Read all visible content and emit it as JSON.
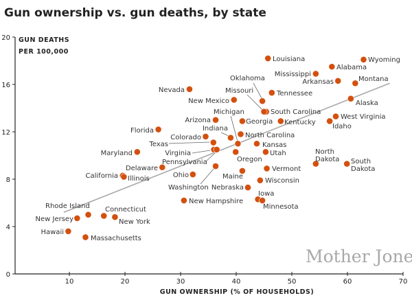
{
  "chart_data": {
    "type": "scatter",
    "title": "Gun ownership vs. gun deaths, by state",
    "xlabel": "GUN OWNERSHIP (% OF HOUSEHOLDS)",
    "ylabel_line1": "GUN DEATHS",
    "ylabel_line2": "PER 100,000",
    "xlim": [
      0,
      70
    ],
    "ylim": [
      0,
      20
    ],
    "xticks": [
      "10",
      "20",
      "30",
      "40",
      "50",
      "60",
      "70"
    ],
    "yticks": [
      "0",
      "4",
      "8",
      "12",
      "16",
      "20"
    ],
    "grid": false,
    "point_color": "#d4500f",
    "trendline_color": "#a9a9a9",
    "trendline": {
      "x": [
        9.0,
        67.6
      ],
      "y": [
        5.2,
        16.1
      ]
    },
    "watermark": "Mother Jones",
    "points": [
      {
        "name": "Wyoming",
        "x": 62.9,
        "y": 18.1
      },
      {
        "name": "Louisiana",
        "x": 45.7,
        "y": 18.2
      },
      {
        "name": "Alabama",
        "x": 57.2,
        "y": 17.5
      },
      {
        "name": "Mississippi",
        "x": 54.3,
        "y": 16.9
      },
      {
        "name": "Arkansas",
        "x": 58.3,
        "y": 16.3
      },
      {
        "name": "Montana",
        "x": 61.4,
        "y": 16.1
      },
      {
        "name": "Nevada",
        "x": 31.6,
        "y": 15.6
      },
      {
        "name": "Tennessee",
        "x": 46.4,
        "y": 15.3
      },
      {
        "name": "New Mexico",
        "x": 39.6,
        "y": 14.7
      },
      {
        "name": "Oklahoma",
        "x": 44.7,
        "y": 14.6
      },
      {
        "name": "Alaska",
        "x": 60.6,
        "y": 14.8
      },
      {
        "name": "South Carolina",
        "x": 45.4,
        "y": 13.7
      },
      {
        "name": "Missouri",
        "x": 45.0,
        "y": 13.7
      },
      {
        "name": "West Virginia",
        "x": 57.9,
        "y": 13.3
      },
      {
        "name": "Idaho",
        "x": 56.8,
        "y": 12.9
      },
      {
        "name": "Georgia",
        "x": 41.1,
        "y": 12.9
      },
      {
        "name": "Kentucky",
        "x": 48.0,
        "y": 12.9
      },
      {
        "name": "Arizona",
        "x": 36.3,
        "y": 13.0
      },
      {
        "name": "Florida",
        "x": 26.0,
        "y": 12.2
      },
      {
        "name": "North Carolina",
        "x": 40.8,
        "y": 11.8
      },
      {
        "name": "Indiana",
        "x": 39.0,
        "y": 11.5
      },
      {
        "name": "Colorado",
        "x": 34.5,
        "y": 11.6
      },
      {
        "name": "Texas",
        "x": 35.9,
        "y": 11.1
      },
      {
        "name": "Kansas",
        "x": 43.7,
        "y": 11.0
      },
      {
        "name": "Michigan",
        "x": 40.3,
        "y": 11.0
      },
      {
        "name": "Virginia",
        "x": 36.0,
        "y": 10.5
      },
      {
        "name": "Pennsylvania",
        "x": 36.5,
        "y": 10.5
      },
      {
        "name": "Oregon",
        "x": 39.9,
        "y": 10.3
      },
      {
        "name": "Utah",
        "x": 45.3,
        "y": 10.3
      },
      {
        "name": "Maryland",
        "x": 22.2,
        "y": 10.3
      },
      {
        "name": "North Dakota",
        "x": 54.3,
        "y": 9.3
      },
      {
        "name": "South Dakota",
        "x": 59.9,
        "y": 9.3
      },
      {
        "name": "Delaware",
        "x": 26.7,
        "y": 9.0
      },
      {
        "name": "Washington",
        "x": 36.3,
        "y": 9.1
      },
      {
        "name": "Vermont",
        "x": 45.5,
        "y": 8.9
      },
      {
        "name": "Maine",
        "x": 41.1,
        "y": 8.7
      },
      {
        "name": "Ohio",
        "x": 32.2,
        "y": 8.4
      },
      {
        "name": "California",
        "x": 19.6,
        "y": 8.3
      },
      {
        "name": "Illinois",
        "x": 19.8,
        "y": 8.2
      },
      {
        "name": "Wisconsin",
        "x": 44.3,
        "y": 7.9
      },
      {
        "name": "Nebraska",
        "x": 42.1,
        "y": 7.3
      },
      {
        "name": "New Hampshire",
        "x": 30.6,
        "y": 6.2
      },
      {
        "name": "Iowa",
        "x": 43.9,
        "y": 6.3
      },
      {
        "name": "Minnesota",
        "x": 44.7,
        "y": 6.2
      },
      {
        "name": "Rhode Island",
        "x": 13.4,
        "y": 5.0
      },
      {
        "name": "Connecticut",
        "x": 16.2,
        "y": 4.9
      },
      {
        "name": "New York",
        "x": 18.2,
        "y": 4.8
      },
      {
        "name": "New Jersey",
        "x": 11.4,
        "y": 4.7
      },
      {
        "name": "Hawaii",
        "x": 9.8,
        "y": 3.6
      },
      {
        "name": "Massachusetts",
        "x": 12.9,
        "y": 3.1
      }
    ]
  }
}
